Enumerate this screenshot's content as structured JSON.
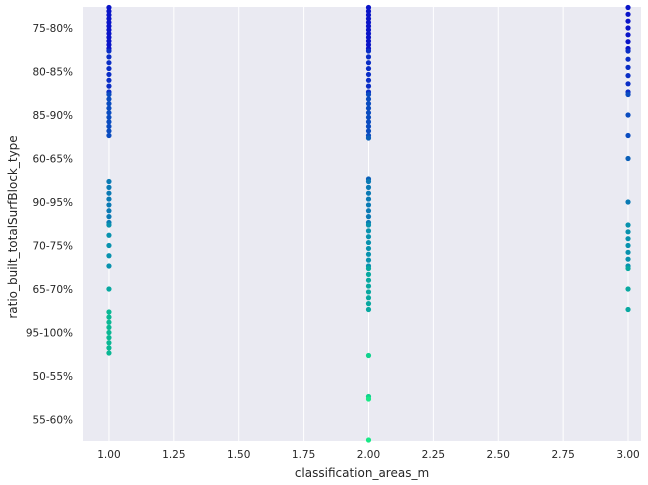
{
  "chart_data": {
    "type": "scatter",
    "xlabel": "classification_areas_m",
    "ylabel": "ratio_built_totalSurfBlock_type",
    "x_ticks": [
      "1.00",
      "1.25",
      "1.50",
      "1.75",
      "2.00",
      "2.25",
      "2.50",
      "2.75",
      "3.00"
    ],
    "xlim": [
      0.9,
      3.05
    ],
    "categories": [
      "75-80%",
      "80-85%",
      "85-90%",
      "60-65%",
      "90-95%",
      "70-75%",
      "65-70%",
      "95-100%",
      "50-55%",
      "55-60%"
    ],
    "grid": true,
    "category_colors": [
      "#0a14c8",
      "#0a2ec6",
      "#0a4cc0",
      "#0a5fb8",
      "#0a7ab4",
      "#0892ae",
      "#08a8a0",
      "#0ab894",
      "#10d28e",
      "#18e886"
    ],
    "points": [
      {
        "x": 1,
        "category": "75-80%",
        "count": 12
      },
      {
        "x": 1,
        "category": "80-85%",
        "count": 8
      },
      {
        "x": 1,
        "category": "85-90%",
        "count": 10
      },
      {
        "x": 1,
        "category": "90-95%",
        "count": 8
      },
      {
        "x": 1,
        "category": "70-75%",
        "count": 5
      },
      {
        "x": 1,
        "category": "65-70%",
        "count": 1
      },
      {
        "x": 1,
        "category": "95-100%",
        "count": 9
      },
      {
        "x": 2,
        "category": "75-80%",
        "count": 12
      },
      {
        "x": 2,
        "category": "80-85%",
        "count": 8
      },
      {
        "x": 2,
        "category": "85-90%",
        "count": 10
      },
      {
        "x": 2,
        "category": "60-65%",
        "count": 2
      },
      {
        "x": 2,
        "category": "90-95%",
        "count": 8
      },
      {
        "x": 2,
        "category": "70-75%",
        "count": 8
      },
      {
        "x": 2,
        "category": "65-70%",
        "count": 8
      },
      {
        "x": 2,
        "category": "50-55%",
        "count": 2
      },
      {
        "x": 2,
        "category": "55-60%",
        "count": 2
      },
      {
        "x": 3,
        "category": "75-80%",
        "count": 7
      },
      {
        "x": 3,
        "category": "80-85%",
        "count": 6
      },
      {
        "x": 3,
        "category": "85-90%",
        "count": 3
      },
      {
        "x": 3,
        "category": "60-65%",
        "count": 1
      },
      {
        "x": 3,
        "category": "90-95%",
        "count": 1
      },
      {
        "x": 3,
        "category": "70-75%",
        "count": 7
      },
      {
        "x": 3,
        "category": "65-70%",
        "count": 3
      }
    ]
  }
}
